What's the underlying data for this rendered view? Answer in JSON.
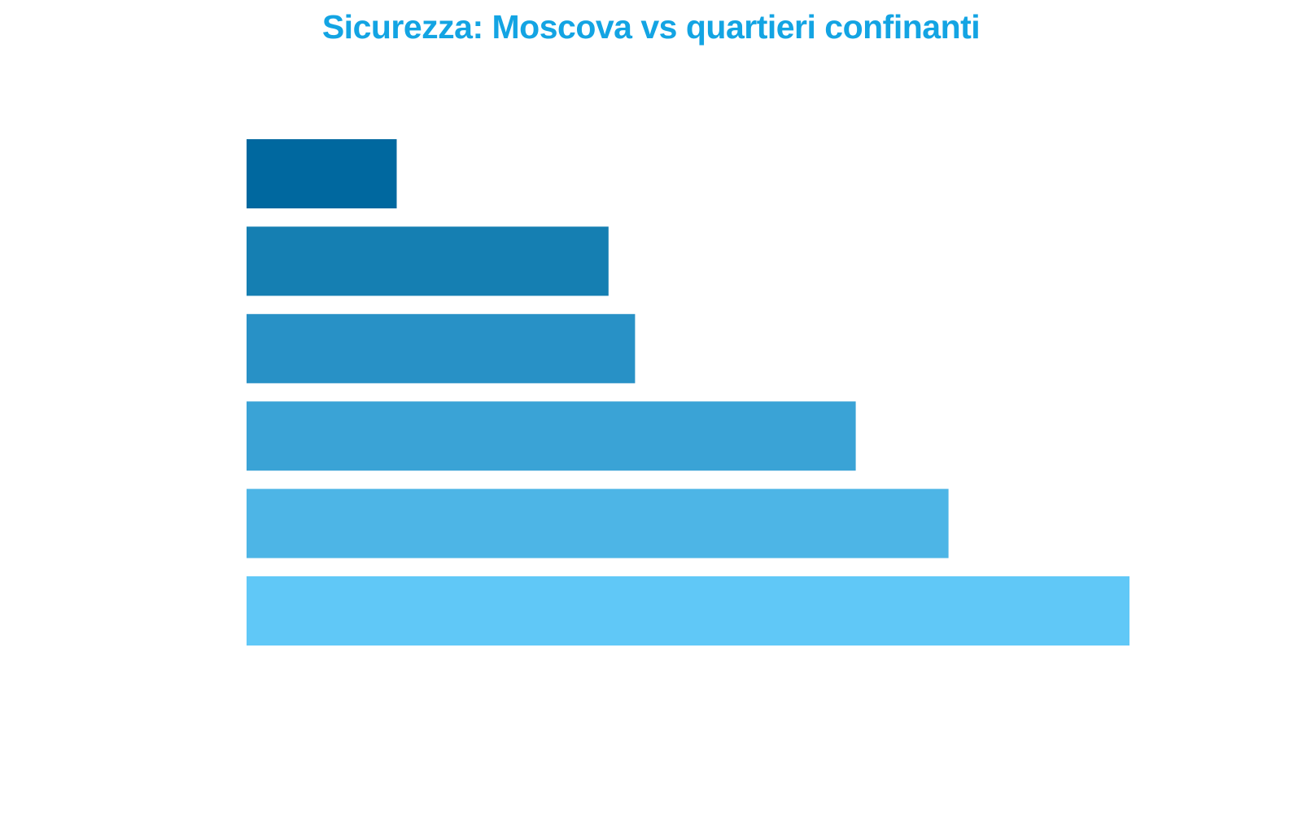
{
  "colors": {
    "title": "#13a4e3"
  },
  "chart_data": {
    "type": "bar",
    "orientation": "horizontal",
    "title": "Sicurezza: Moscova vs quartieri confinanti",
    "xlabel": "",
    "ylabel": "",
    "grid": false,
    "legend": "none",
    "xlim": [
      0,
      100
    ],
    "values": [
      17,
      41,
      44,
      69,
      79.5,
      100
    ],
    "colors": [
      "#00689f",
      "#157fb2",
      "#2891c6",
      "#3aa3d6",
      "#4db5e6",
      "#60c8f7"
    ]
  }
}
